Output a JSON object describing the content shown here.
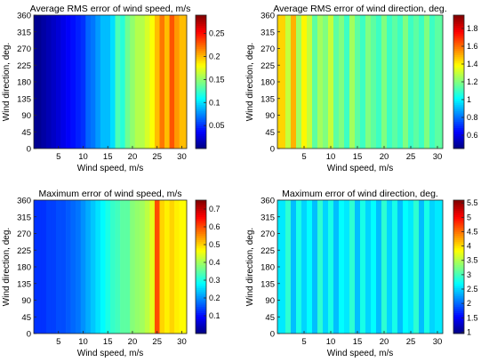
{
  "chart_data": [
    {
      "type": "heatmap",
      "title": "Average RMS error of wind speed, m/s",
      "xlabel": "Wind speed, m/s",
      "ylabel": "Wind direction, deg.",
      "xlim": [
        0,
        31
      ],
      "ylim": [
        0,
        360
      ],
      "xticks": [
        5,
        10,
        15,
        20,
        25,
        30
      ],
      "yticks": [
        0,
        45,
        90,
        135,
        180,
        225,
        270,
        315,
        360
      ],
      "colormap": "jet",
      "clim": [
        0.0,
        0.29
      ],
      "colorbar_ticks": [
        0.05,
        0.1,
        0.15,
        0.2,
        0.25
      ],
      "x": [
        1,
        2,
        3,
        4,
        5,
        6,
        7,
        8,
        9,
        10,
        11,
        12,
        13,
        14,
        15,
        16,
        17,
        18,
        19,
        20,
        21,
        22,
        23,
        24,
        25,
        26,
        27,
        28,
        29,
        30
      ],
      "values_by_x": [
        0.005,
        0.01,
        0.015,
        0.02,
        0.025,
        0.03,
        0.035,
        0.04,
        0.045,
        0.05,
        0.065,
        0.07,
        0.08,
        0.09,
        0.09,
        0.1,
        0.13,
        0.12,
        0.14,
        0.15,
        0.16,
        0.16,
        0.17,
        0.18,
        0.2,
        0.22,
        0.2,
        0.23,
        0.21,
        0.2
      ],
      "grid": false
    },
    {
      "type": "heatmap",
      "title": "Average RMS error of wind direction, deg.",
      "xlabel": "Wind speed, m/s",
      "ylabel": "Wind direction, deg.",
      "xlim": [
        0,
        31
      ],
      "ylim": [
        0,
        360
      ],
      "xticks": [
        5,
        10,
        15,
        20,
        25,
        30
      ],
      "yticks": [
        0,
        45,
        90,
        135,
        180,
        225,
        270,
        315,
        360
      ],
      "colormap": "jet",
      "clim": [
        0.45,
        1.95
      ],
      "colorbar_ticks": [
        0.6,
        0.8,
        1,
        1.2,
        1.4,
        1.6,
        1.8
      ],
      "x": [
        1,
        2,
        3,
        4,
        5,
        6,
        7,
        8,
        9,
        10,
        11,
        12,
        13,
        14,
        15,
        16,
        17,
        18,
        19,
        20,
        21,
        22,
        23,
        24,
        25,
        26,
        27,
        28,
        29,
        30
      ],
      "values_by_x": [
        1.45,
        1.3,
        1.5,
        1.25,
        1.4,
        1.3,
        1.15,
        1.25,
        1.2,
        1.3,
        1.15,
        1.2,
        1.1,
        1.25,
        1.15,
        1.1,
        1.2,
        1.15,
        1.1,
        1.2,
        1.1,
        1.15,
        1.1,
        1.2,
        1.1,
        1.15,
        1.1,
        1.2,
        1.1,
        1.15
      ],
      "grid": false
    },
    {
      "type": "heatmap",
      "title": "Maximum error of wind speed, m/s",
      "xlabel": "Wind speed, m/s",
      "ylabel": "Wind direction, deg.",
      "xlim": [
        0,
        31
      ],
      "ylim": [
        0,
        360
      ],
      "xticks": [
        5,
        10,
        15,
        20,
        25,
        30
      ],
      "yticks": [
        0,
        45,
        90,
        135,
        180,
        225,
        270,
        315,
        360
      ],
      "colormap": "jet",
      "clim": [
        0.0,
        0.75
      ],
      "colorbar_ticks": [
        0.1,
        0.2,
        0.3,
        0.4,
        0.5,
        0.6,
        0.7
      ],
      "x": [
        1,
        2,
        3,
        4,
        5,
        6,
        7,
        8,
        9,
        10,
        11,
        12,
        13,
        14,
        15,
        16,
        17,
        18,
        19,
        20,
        21,
        22,
        23,
        24,
        25,
        26,
        27,
        28,
        29,
        30
      ],
      "values_by_x": [
        0.13,
        0.13,
        0.14,
        0.14,
        0.15,
        0.15,
        0.16,
        0.17,
        0.18,
        0.2,
        0.22,
        0.24,
        0.26,
        0.28,
        0.3,
        0.32,
        0.33,
        0.35,
        0.35,
        0.38,
        0.39,
        0.4,
        0.42,
        0.45,
        0.6,
        0.5,
        0.48,
        0.5,
        0.48,
        0.47
      ],
      "grid": false
    },
    {
      "type": "heatmap",
      "title": "Maximum error of wind direction, deg.",
      "xlabel": "Wind speed, m/s",
      "ylabel": "Wind direction, deg.",
      "xlim": [
        0,
        31
      ],
      "ylim": [
        0,
        360
      ],
      "xticks": [
        5,
        10,
        15,
        20,
        25,
        30
      ],
      "yticks": [
        0,
        45,
        90,
        135,
        180,
        225,
        270,
        315,
        360
      ],
      "colormap": "jet",
      "clim": [
        0.95,
        5.6
      ],
      "colorbar_ticks": [
        1,
        1.5,
        2,
        2.5,
        3,
        3.5,
        4,
        4.5,
        5,
        5.5
      ],
      "x": [
        1,
        2,
        3,
        4,
        5,
        6,
        7,
        8,
        9,
        10,
        11,
        12,
        13,
        14,
        15,
        16,
        17,
        18,
        19,
        20,
        21,
        22,
        23,
        24,
        25,
        26,
        27,
        28,
        29,
        30
      ],
      "values_by_x": [
        2.6,
        2.9,
        2.4,
        2.8,
        2.5,
        2.7,
        2.4,
        2.9,
        2.5,
        2.8,
        2.4,
        2.7,
        2.6,
        2.9,
        2.4,
        2.8,
        2.5,
        2.7,
        2.4,
        2.9,
        2.5,
        2.8,
        2.4,
        2.7,
        2.6,
        2.9,
        2.4,
        2.8,
        2.5,
        2.6
      ],
      "grid": false
    }
  ]
}
